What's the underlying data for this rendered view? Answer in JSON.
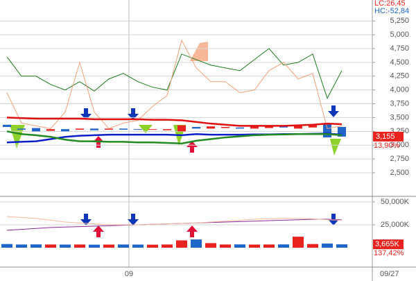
{
  "header": {
    "lc": "LC:26,45",
    "hc": "HC:-52,84"
  },
  "current_date": "09/27",
  "chart_data": [
    {
      "type": "candlestick",
      "categories": [
        null,
        null,
        null,
        null,
        null,
        null,
        null,
        null,
        "09",
        null,
        null,
        null,
        null,
        null,
        null,
        null,
        null,
        null,
        null,
        null,
        null,
        null,
        null,
        null
      ],
      "open": [
        3370,
        3300,
        3310,
        3260,
        3290,
        3280,
        3300,
        3280,
        3300,
        3290,
        3280,
        3270,
        3250,
        3330,
        3300,
        3310,
        3320,
        3300,
        3310,
        3340,
        3300,
        3320,
        3390,
        3330
      ],
      "close": [
        3330,
        3280,
        3250,
        3290,
        3250,
        3300,
        3270,
        3300,
        3280,
        3280,
        3290,
        3290,
        3360,
        3300,
        3340,
        3330,
        3300,
        3340,
        3350,
        3320,
        3360,
        3360,
        3140,
        3155
      ],
      "up_color": "#e8231f",
      "down_color": "#1f66c8",
      "lines": [
        {
          "color": "#1d7a1d",
          "values": [
            4600,
            4250,
            4250,
            4100,
            4000,
            4150,
            3980,
            4200,
            4300,
            4150,
            4050,
            4000,
            4650,
            4550,
            4450,
            4400,
            4350,
            4550,
            4750,
            4450,
            4500,
            4650,
            3850,
            4350
          ]
        },
        {
          "color": "#f2a27a",
          "values": [
            3950,
            3400,
            3350,
            3300,
            3600,
            4500,
            3600,
            3300,
            3400,
            3450,
            3700,
            3900,
            4900,
            4400,
            4150,
            4150,
            3950,
            4000,
            4350,
            4500,
            4200,
            4300,
            3300,
            3350
          ]
        },
        {
          "color": "#e01010",
          "values": [
            3500,
            3490,
            3480,
            3480,
            3480,
            3480,
            3470,
            3470,
            3470,
            3470,
            3460,
            3460,
            3450,
            3420,
            3390,
            3370,
            3350,
            3350,
            3350,
            3350,
            3360,
            3370,
            3390,
            3380
          ]
        },
        {
          "color": "#0a1fc8",
          "values": [
            3050,
            3060,
            3070,
            3110,
            3150,
            3170,
            3180,
            3190,
            3190,
            3190,
            3190,
            3190,
            3180,
            3200,
            3190,
            3190,
            3190,
            3195,
            3195,
            3200,
            3200,
            3205,
            3210,
            3190
          ]
        },
        {
          "color": "#238a23",
          "values": [
            3250,
            3200,
            3180,
            3150,
            3100,
            3070,
            3070,
            3060,
            3060,
            3050,
            3050,
            3040,
            3030,
            3080,
            3110,
            3140,
            3160,
            3180,
            3190,
            3195,
            3200,
            3200,
            3200,
            3180
          ]
        }
      ],
      "ylim": [
        2110,
        5630
      ],
      "yticks": [
        {
          "value": 2500,
          "label": "2,500"
        },
        {
          "value": 2750,
          "label": "2,750"
        },
        {
          "value": 3000,
          "label": "3,000"
        },
        {
          "value": 3250,
          "label": "3,250"
        },
        {
          "value": 3500,
          "label": "3,500"
        },
        {
          "value": 3750,
          "label": "3,750"
        },
        {
          "value": 4000,
          "label": "4,000"
        },
        {
          "value": 4250,
          "label": "4,250"
        },
        {
          "value": 4500,
          "label": "4,500"
        },
        {
          "value": 4750,
          "label": "4,750"
        },
        {
          "value": 5000,
          "label": "5,000"
        },
        {
          "value": 5250,
          "label": "5,250"
        }
      ],
      "last_price": {
        "value": 3155,
        "label": "3,155"
      },
      "change_label": "13,90%",
      "grid": true
    },
    {
      "type": "bar",
      "values": [
        4000,
        3500,
        3600,
        3500,
        3400,
        3500,
        3300,
        3400,
        3500,
        3400,
        3300,
        3500,
        8000,
        9000,
        5000,
        3500,
        3600,
        3400,
        3500,
        3600,
        12000,
        4000,
        4500,
        3665
      ],
      "lines": [
        {
          "color": "#8a2a9a",
          "values": [
            19000,
            20000,
            21000,
            22000,
            22500,
            23000,
            23500,
            24000,
            24500,
            25000,
            25500,
            26000,
            26500,
            27000,
            27500,
            28000,
            28500,
            29000,
            29500,
            30000,
            30500,
            31000,
            31000,
            30500
          ]
        },
        {
          "color": "#f4b89a",
          "values": [
            34000,
            33000,
            32000,
            30000,
            28000,
            27000,
            26000,
            25000,
            25000,
            25000,
            25500,
            26000,
            26500,
            27000,
            28000,
            29000,
            30000,
            31000,
            31500,
            32000,
            32000,
            31500,
            30500,
            30000
          ]
        }
      ],
      "ylim": [
        0,
        54500
      ],
      "yticks": [
        {
          "value": 25000,
          "label": "25,000K"
        },
        {
          "value": 50000,
          "label": "50,000K"
        }
      ],
      "last_volume": {
        "value": 3665,
        "label": "3,665K"
      },
      "change_label": "137,42%",
      "grid": true
    }
  ]
}
